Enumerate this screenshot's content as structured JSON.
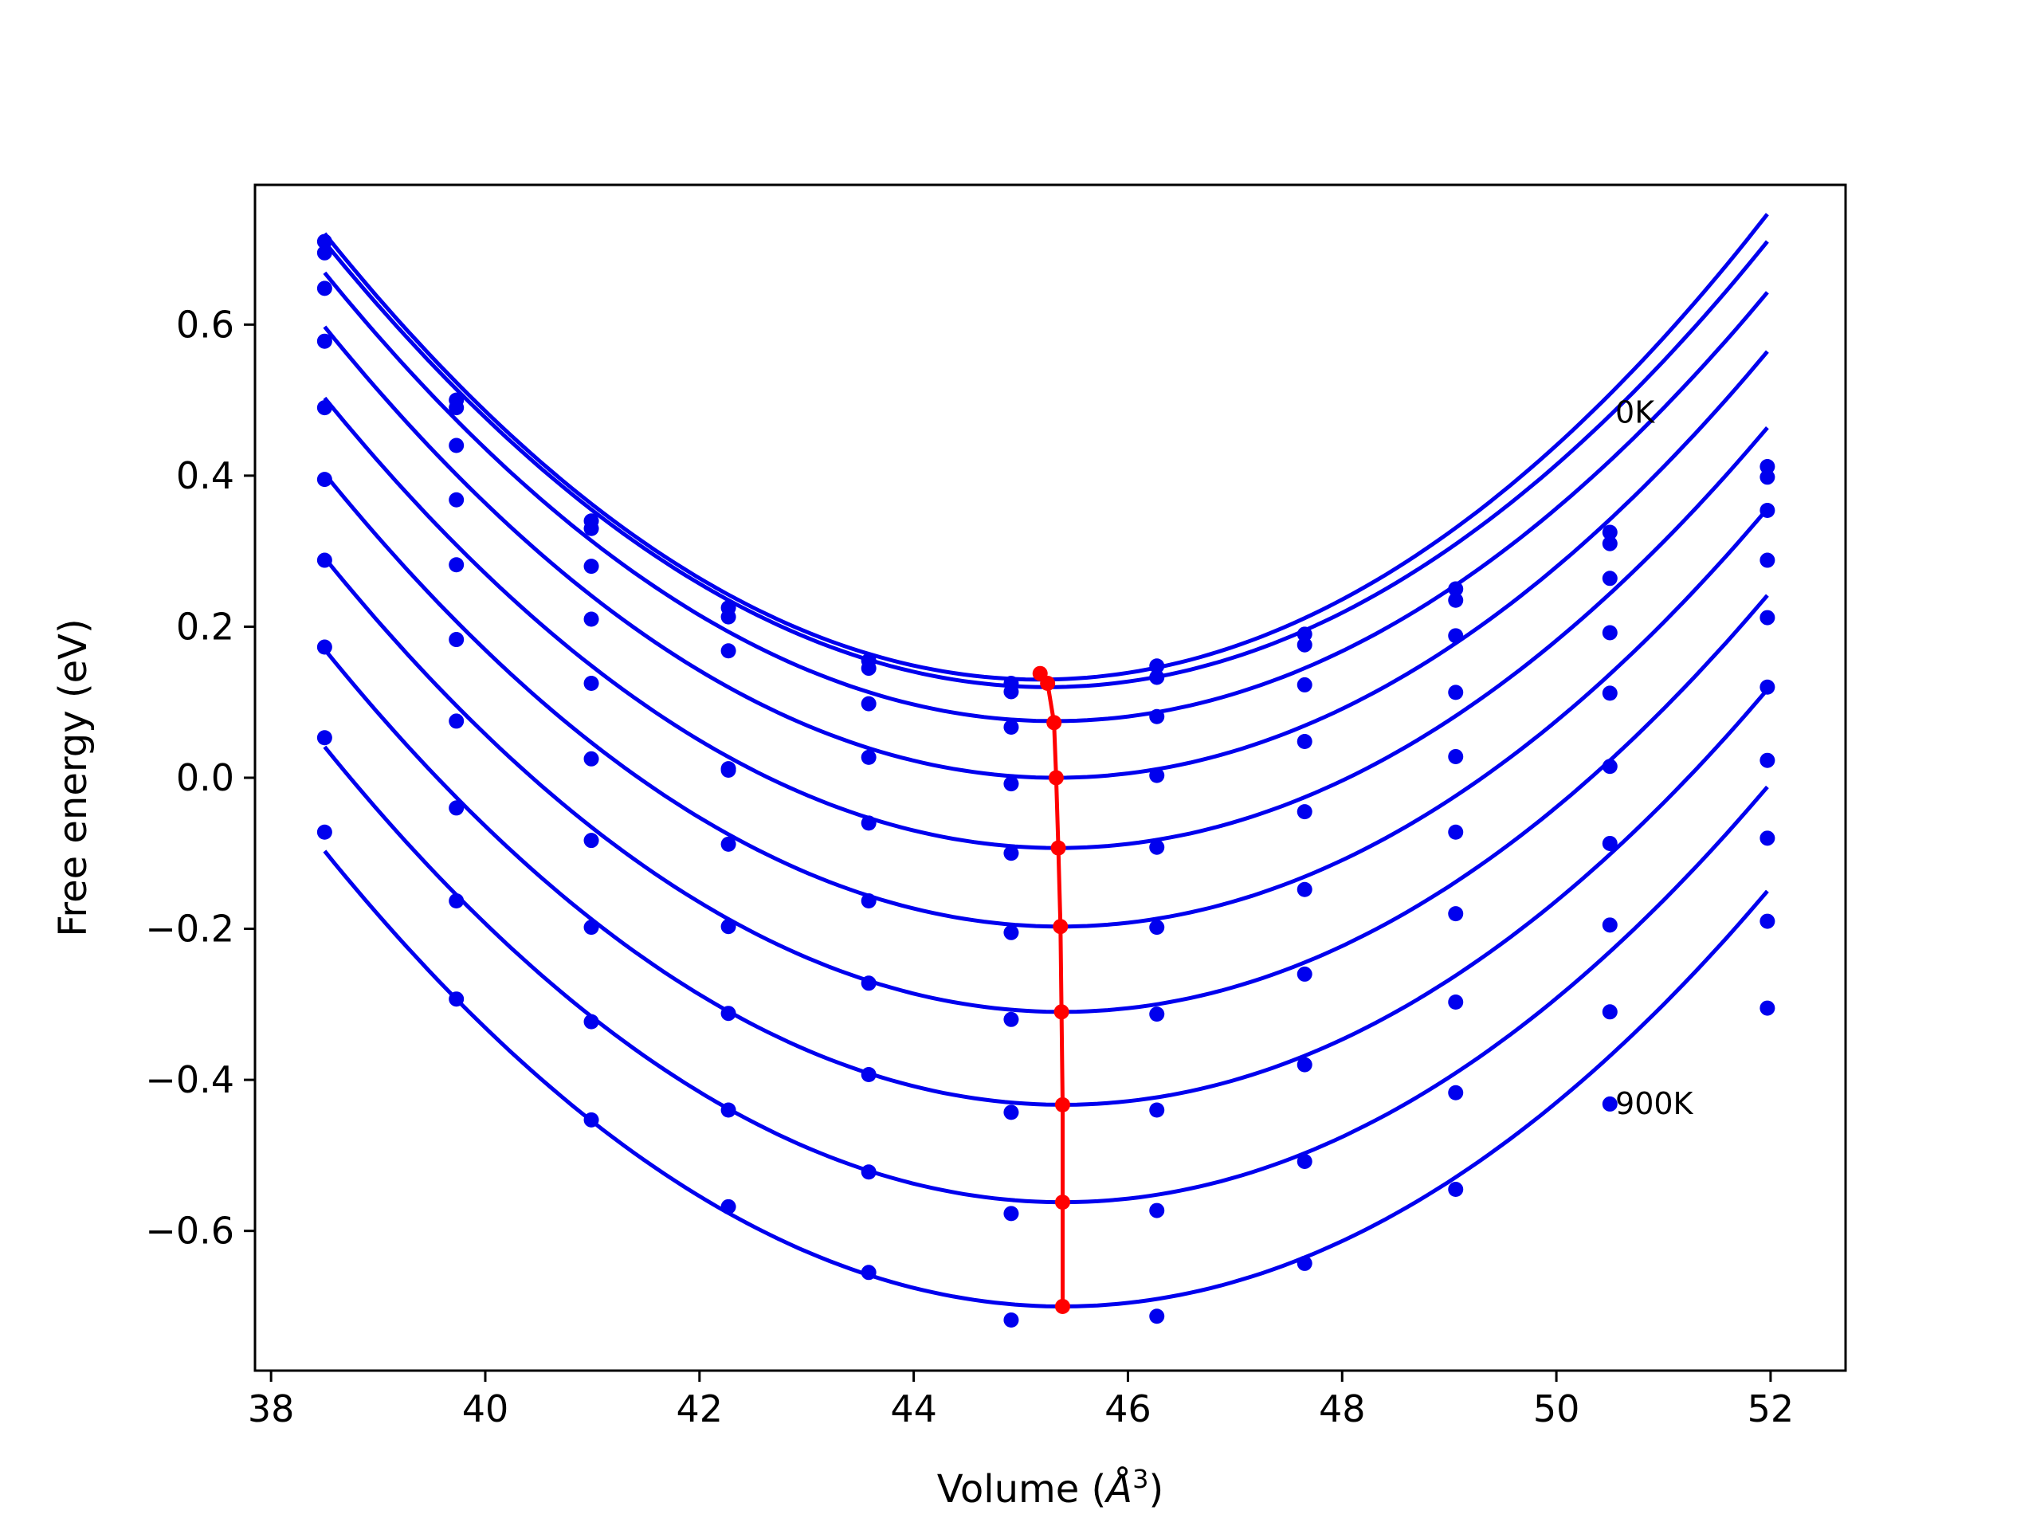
{
  "chart_data": {
    "type": "line",
    "xlabel_text": "Volume (",
    "xlabel_unit": "Å",
    "xlabel_exp": "3",
    "xlabel_close": ")",
    "ylabel": "Free energy (eV)",
    "xlim": [
      37.85,
      52.7
    ],
    "ylim": [
      -0.785,
      0.785
    ],
    "x_ticks": [
      38,
      40,
      42,
      44,
      46,
      48,
      50,
      52
    ],
    "x_tick_labels": [
      "38",
      "40",
      "42",
      "44",
      "46",
      "48",
      "50",
      "52"
    ],
    "y_ticks": [
      -0.6,
      -0.4,
      -0.2,
      0.0,
      0.2,
      0.4,
      0.6
    ],
    "y_tick_labels": [
      "−0.6",
      "−0.4",
      "−0.2",
      "0.0",
      "0.2",
      "0.4",
      "0.6"
    ],
    "grid": false,
    "legend": "none",
    "annotations": [
      {
        "text": "0K",
        "x": 50.55,
        "y": 0.47
      },
      {
        "text": "900K",
        "x": 50.55,
        "y": -0.445
      }
    ],
    "points_x": [
      38.5,
      39.73,
      40.99,
      42.27,
      43.58,
      44.91,
      46.27,
      47.65,
      49.06,
      50.5,
      51.97
    ],
    "series": [
      {
        "curve_color": "#0000ee",
        "point_color": "#0000ee",
        "points_y": [
          0.71,
          0.5,
          0.34,
          0.225,
          0.155,
          0.125,
          0.148,
          0.19,
          0.25,
          0.325,
          0.412
        ],
        "fit": [
          0.13,
          45.18,
          0.0133,
          1e-05
        ]
      },
      {
        "curve_color": "#0000ee",
        "point_color": "#0000ee",
        "points_y": [
          0.695,
          0.49,
          0.33,
          0.213,
          0.145,
          0.114,
          0.133,
          0.176,
          0.235,
          0.31,
          0.398
        ],
        "fit": [
          0.12,
          45.25,
          0.013,
          1e-05
        ]
      },
      {
        "curve_color": "#0000ee",
        "point_color": "#0000ee",
        "points_y": [
          0.648,
          0.44,
          0.28,
          0.168,
          0.098,
          0.067,
          0.081,
          0.123,
          0.188,
          0.264,
          0.354
        ],
        "fit": [
          0.075,
          45.31,
          0.0128,
          0.0
        ]
      },
      {
        "curve_color": "#0000ee",
        "point_color": "#0000ee",
        "points_y": [
          0.578,
          0.368,
          0.21,
          0.01,
          0.027,
          -0.008,
          0.003,
          0.048,
          0.113,
          0.192,
          0.288
        ],
        "fit": [
          0.0,
          45.33,
          0.0128,
          0.0
        ]
      },
      {
        "curve_color": "#0000ee",
        "point_color": "#0000ee",
        "points_y": [
          0.49,
          0.282,
          0.125,
          0.012,
          -0.06,
          -0.1,
          -0.092,
          -0.045,
          0.028,
          0.112,
          0.212
        ],
        "fit": [
          -0.093,
          45.35,
          0.0127,
          0.0
        ]
      },
      {
        "curve_color": "#0000ee",
        "point_color": "#0000ee",
        "points_y": [
          0.395,
          0.183,
          0.025,
          -0.088,
          -0.163,
          -0.205,
          -0.198,
          -0.148,
          -0.072,
          0.015,
          0.12
        ],
        "fit": [
          -0.197,
          45.37,
          0.0127,
          0.0
        ]
      },
      {
        "curve_color": "#0000ee",
        "point_color": "#0000ee",
        "points_y": [
          0.288,
          0.075,
          -0.083,
          -0.197,
          -0.272,
          -0.32,
          -0.313,
          -0.26,
          -0.18,
          -0.087,
          0.023
        ],
        "fit": [
          -0.31,
          45.38,
          0.0127,
          0.0
        ]
      },
      {
        "curve_color": "#0000ee",
        "point_color": "#0000ee",
        "points_y": [
          0.173,
          -0.04,
          -0.198,
          -0.312,
          -0.393,
          -0.443,
          -0.44,
          -0.38,
          -0.297,
          -0.195,
          -0.08
        ],
        "fit": [
          -0.433,
          45.39,
          0.0127,
          0.0
        ]
      },
      {
        "curve_color": "#0000ee",
        "point_color": "#0000ee",
        "points_y": [
          0.053,
          -0.163,
          -0.323,
          -0.44,
          -0.522,
          -0.577,
          -0.573,
          -0.508,
          -0.417,
          -0.31,
          -0.19
        ],
        "fit": [
          -0.562,
          45.39,
          0.0127,
          0.0
        ]
      },
      {
        "curve_color": "#0000ee",
        "point_color": "#0000ee",
        "points_y": [
          -0.072,
          -0.293,
          -0.453,
          -0.568,
          -0.655,
          -0.718,
          -0.713,
          -0.643,
          -0.545,
          -0.432,
          -0.305
        ],
        "fit": [
          -0.7,
          45.39,
          0.0127,
          0.0
        ]
      }
    ],
    "minima_series": {
      "color": "#ff0000",
      "x": [
        45.18,
        45.25,
        45.31,
        45.33,
        45.35,
        45.37,
        45.38,
        45.39,
        45.39,
        45.39
      ],
      "y": [
        0.138,
        0.125,
        0.073,
        0.0,
        -0.093,
        -0.197,
        -0.31,
        -0.433,
        -0.562,
        -0.7
      ]
    }
  }
}
